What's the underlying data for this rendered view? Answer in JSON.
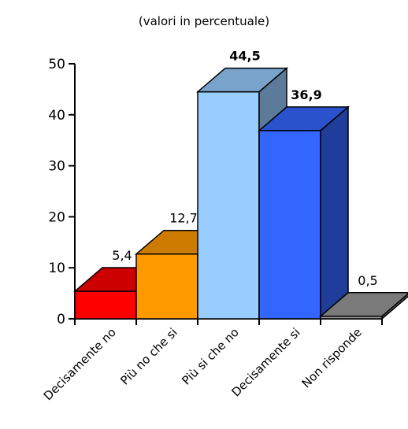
{
  "chart_data": {
    "type": "bar",
    "subtitle": "(valori in percentuale)",
    "categories": [
      "Decisamente no",
      "Più no che si",
      "Più si che no",
      "Decisamente si",
      "Non risponde"
    ],
    "values": [
      5.4,
      12.7,
      44.5,
      36.9,
      0.5
    ],
    "value_labels": [
      "5,4",
      "12,7",
      "44,5",
      "36,9",
      "0,5"
    ],
    "value_label_bold": [
      false,
      false,
      true,
      true,
      false
    ],
    "ylim": [
      0,
      50
    ],
    "yticks": [
      "0",
      "10",
      "20",
      "30",
      "40",
      "50"
    ],
    "colors": {
      "front": [
        "#ff0000",
        "#ff9900",
        "#99ccff",
        "#3366ff",
        "#999999"
      ],
      "top": [
        "#cc0000",
        "#cc7a00",
        "#7aa3cc",
        "#2952cc",
        "#7a7a7a"
      ],
      "side": [
        "#990000",
        "#995c00",
        "#5c7a99",
        "#1f3d99",
        "#5c5c5c"
      ]
    },
    "grid": false,
    "legend": "none",
    "style": "3d"
  }
}
